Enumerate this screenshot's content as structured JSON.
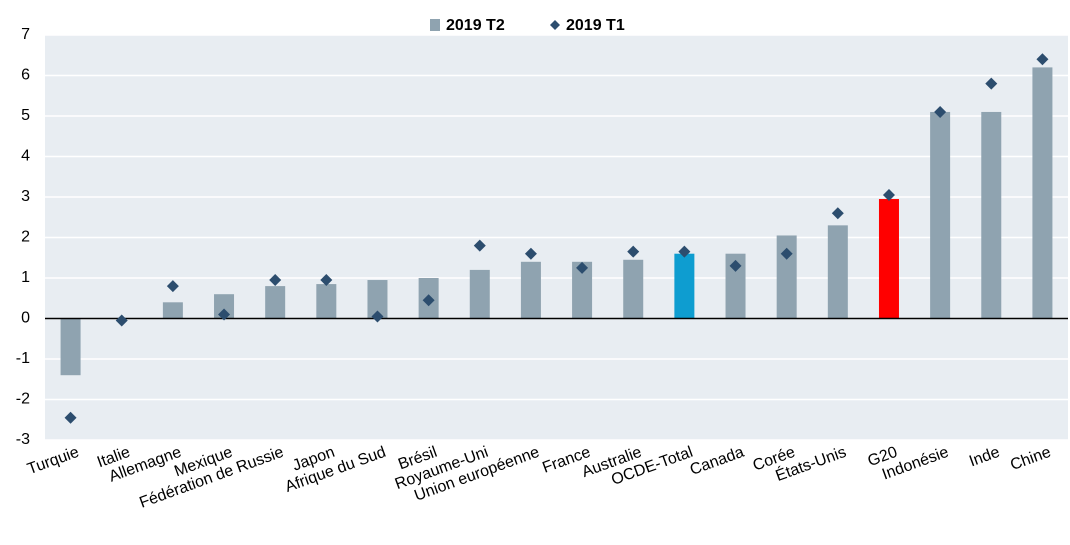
{
  "chart_data": {
    "type": "bar",
    "categories": [
      "Turquie",
      "Italie",
      "Allemagne",
      "Mexique",
      "Fédération de Russie",
      "Japon",
      "Afrique du Sud",
      "Brésil",
      "Royaume-Uni",
      "Union européenne",
      "France",
      "Australie",
      "OCDE-Total",
      "Canada",
      "Corée",
      "États-Unis",
      "G20",
      "Indonésie",
      "Inde",
      "Chine"
    ],
    "series": [
      {
        "name": "2019 T2",
        "color": "#8fa3b0",
        "marker": "bar",
        "colors": [
          "#8fa3b0",
          "#8fa3b0",
          "#8fa3b0",
          "#8fa3b0",
          "#8fa3b0",
          "#8fa3b0",
          "#8fa3b0",
          "#8fa3b0",
          "#8fa3b0",
          "#8fa3b0",
          "#8fa3b0",
          "#8fa3b0",
          "#0e9dd0",
          "#8fa3b0",
          "#8fa3b0",
          "#8fa3b0",
          "#ff0000",
          "#8fa3b0",
          "#8fa3b0",
          "#8fa3b0"
        ],
        "values": [
          -1.4,
          0.0,
          0.4,
          0.6,
          0.8,
          0.85,
          0.95,
          1.0,
          1.2,
          1.4,
          1.4,
          1.45,
          1.6,
          1.6,
          2.05,
          2.3,
          2.95,
          5.1,
          5.1,
          6.2
        ]
      },
      {
        "name": "2019 T1",
        "color": "#2c4d6e",
        "marker": "diamond",
        "values": [
          -2.45,
          -0.05,
          0.8,
          0.1,
          0.95,
          0.95,
          0.05,
          0.45,
          1.8,
          1.6,
          1.25,
          1.65,
          1.65,
          1.3,
          1.6,
          2.6,
          3.05,
          5.1,
          5.8,
          6.4
        ]
      }
    ],
    "ylim": [
      -3,
      7
    ],
    "yticks": [
      -3,
      -2,
      -1,
      0,
      1,
      2,
      3,
      4,
      5,
      6,
      7
    ],
    "grid": true
  }
}
